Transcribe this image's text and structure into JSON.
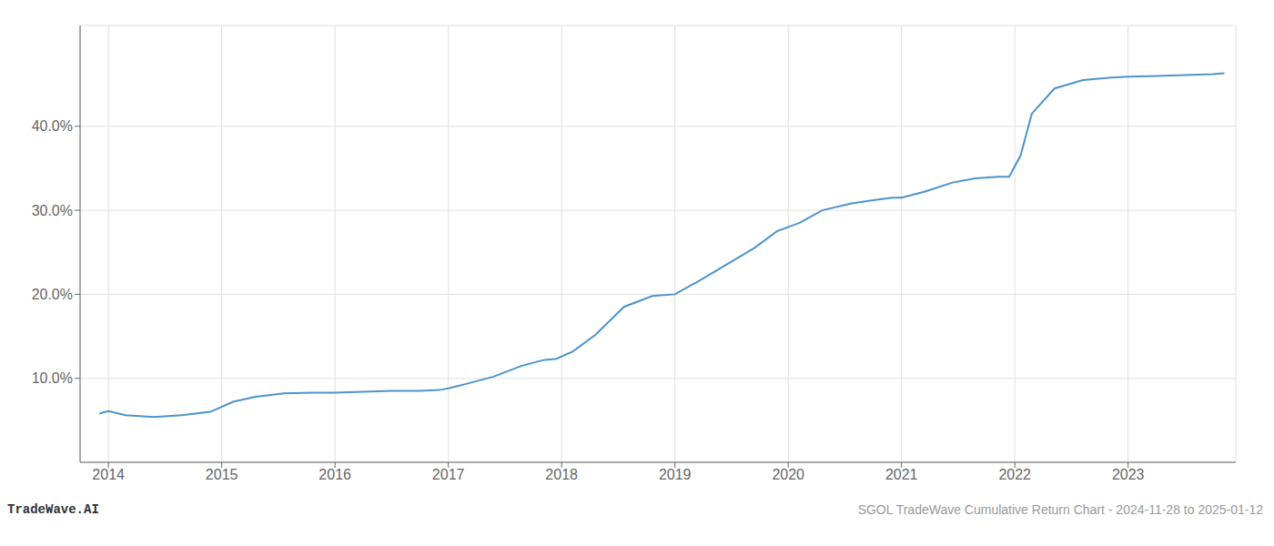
{
  "chart_data": {
    "type": "line",
    "x": [
      2013.92,
      2014.0,
      2014.15,
      2014.4,
      2014.65,
      2014.9,
      2015.1,
      2015.3,
      2015.55,
      2015.8,
      2016.0,
      2016.25,
      2016.5,
      2016.75,
      2016.92,
      2017.0,
      2017.15,
      2017.4,
      2017.65,
      2017.85,
      2017.95,
      2018.1,
      2018.3,
      2018.55,
      2018.8,
      2019.0,
      2019.2,
      2019.45,
      2019.7,
      2019.9,
      2020.1,
      2020.3,
      2020.55,
      2020.75,
      2020.92,
      2021.0,
      2021.2,
      2021.45,
      2021.65,
      2021.85,
      2021.95,
      2022.05,
      2022.15,
      2022.35,
      2022.6,
      2022.85,
      2023.0,
      2023.25,
      2023.5,
      2023.75,
      2023.85
    ],
    "values": [
      5.8,
      6.1,
      5.6,
      5.4,
      5.6,
      6.0,
      7.2,
      7.8,
      8.2,
      8.3,
      8.3,
      8.4,
      8.5,
      8.5,
      8.6,
      8.8,
      9.3,
      10.2,
      11.5,
      12.2,
      12.3,
      13.2,
      15.2,
      18.5,
      19.8,
      20.0,
      21.5,
      23.5,
      25.5,
      27.5,
      28.5,
      30.0,
      30.8,
      31.2,
      31.5,
      31.5,
      32.2,
      33.3,
      33.8,
      34.0,
      34.0,
      36.5,
      41.5,
      44.5,
      45.5,
      45.8,
      45.9,
      46.0,
      46.1,
      46.2,
      46.3
    ],
    "color": "#4d94c8",
    "xlim": [
      2013.75,
      2023.95
    ],
    "ylim": [
      0,
      52
    ],
    "xticks": [
      2014,
      2015,
      2016,
      2017,
      2018,
      2019,
      2020,
      2021,
      2022,
      2023
    ],
    "yticks": [
      {
        "value": 10.0,
        "label": "10.0%"
      },
      {
        "value": 20.0,
        "label": "20.0%"
      },
      {
        "value": 30.0,
        "label": "30.0%"
      },
      {
        "value": 40.0,
        "label": "40.0%"
      }
    ],
    "grid": true,
    "annotations": [
      "TradeWave.AI",
      "SGOL TradeWave Cumulative Return Chart - 2024-11-28 to 2025-01-12"
    ]
  }
}
